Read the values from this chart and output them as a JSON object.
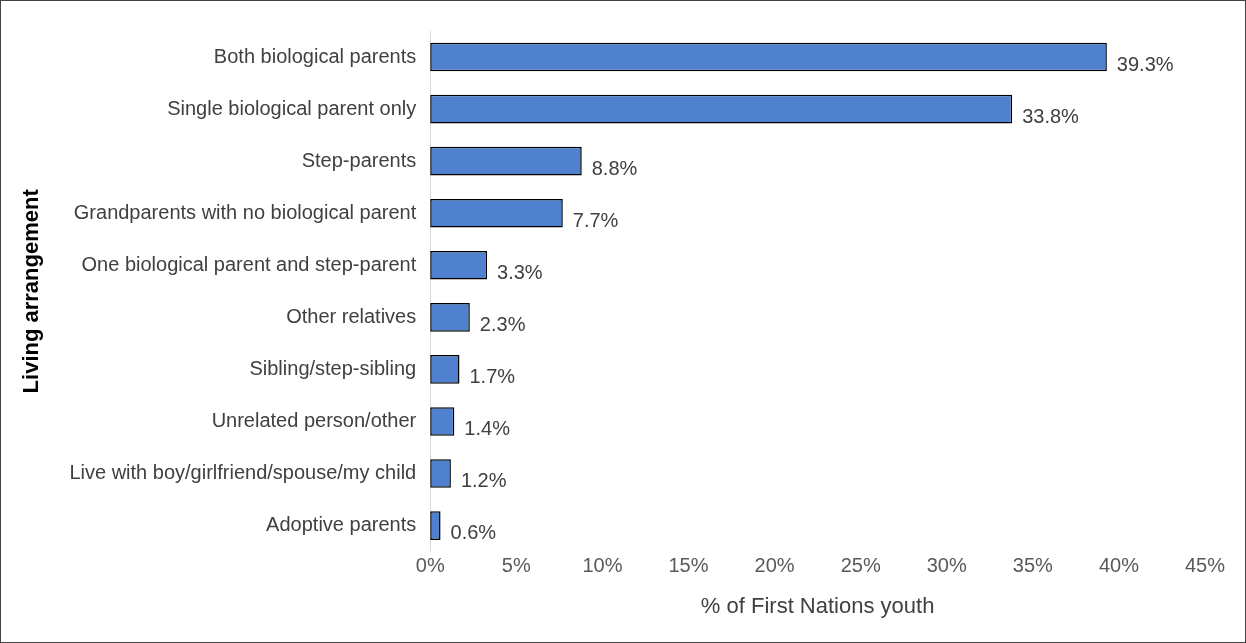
{
  "chart_data": {
    "type": "bar",
    "orientation": "horizontal",
    "xlabel": "% of First Nations youth",
    "ylabel": "Living arrangement",
    "categories": [
      "Both biological parents",
      "Single biological parent only",
      "Step-parents",
      "Grandparents with no biological parent",
      "One biological parent and step-parent",
      "Other relatives",
      "Sibling/step-sibling",
      "Unrelated person/other",
      "Live with boy/girlfriend/spouse/my child",
      "Adoptive parents"
    ],
    "values": [
      39.3,
      33.8,
      8.8,
      7.7,
      3.3,
      2.3,
      1.7,
      1.4,
      1.2,
      0.6
    ],
    "value_labels": [
      "39.3%",
      "33.8%",
      "8.8%",
      "7.7%",
      "3.3%",
      "2.3%",
      "1.7%",
      "1.4%",
      "1.2%",
      "0.6%"
    ],
    "color": "#4f81cf",
    "xlim": [
      0,
      45
    ],
    "xticks": [
      {
        "value": 0,
        "label": "0%"
      },
      {
        "value": 5,
        "label": "5%"
      },
      {
        "value": 10,
        "label": "10%"
      },
      {
        "value": 15,
        "label": "15%"
      },
      {
        "value": 20,
        "label": "20%"
      },
      {
        "value": 25,
        "label": "25%"
      },
      {
        "value": 30,
        "label": "30%"
      },
      {
        "value": 35,
        "label": "35%"
      },
      {
        "value": 40,
        "label": "40%"
      },
      {
        "value": 45,
        "label": "45%"
      }
    ],
    "grid": false,
    "legend": false
  }
}
